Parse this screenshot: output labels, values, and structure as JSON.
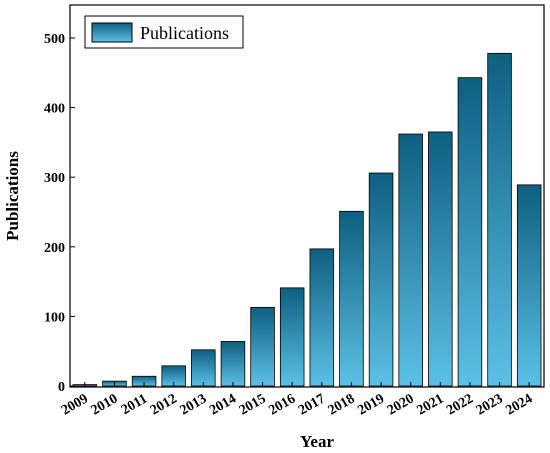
{
  "chart_data": {
    "type": "bar",
    "categories": [
      "2009",
      "2010",
      "2011",
      "2012",
      "2013",
      "2014",
      "2015",
      "2016",
      "2017",
      "2018",
      "2019",
      "2020",
      "2021",
      "2022",
      "2023",
      "2024"
    ],
    "series": [
      {
        "name": "Publications",
        "values": [
          2,
          7,
          14,
          29,
          52,
          64,
          113,
          141,
          197,
          251,
          306,
          362,
          365,
          443,
          478,
          289
        ]
      }
    ],
    "xlabel": "Year",
    "ylabel": "Publications",
    "ylim": [
      0,
      550
    ],
    "yticks": [
      0,
      100,
      200,
      300,
      400,
      500
    ],
    "grid": false,
    "legend_position": "top-left",
    "colors": {
      "bar_top": "#0e5f80",
      "bar_bottom": "#5cc0e6",
      "bar_edge": "#000000"
    }
  }
}
